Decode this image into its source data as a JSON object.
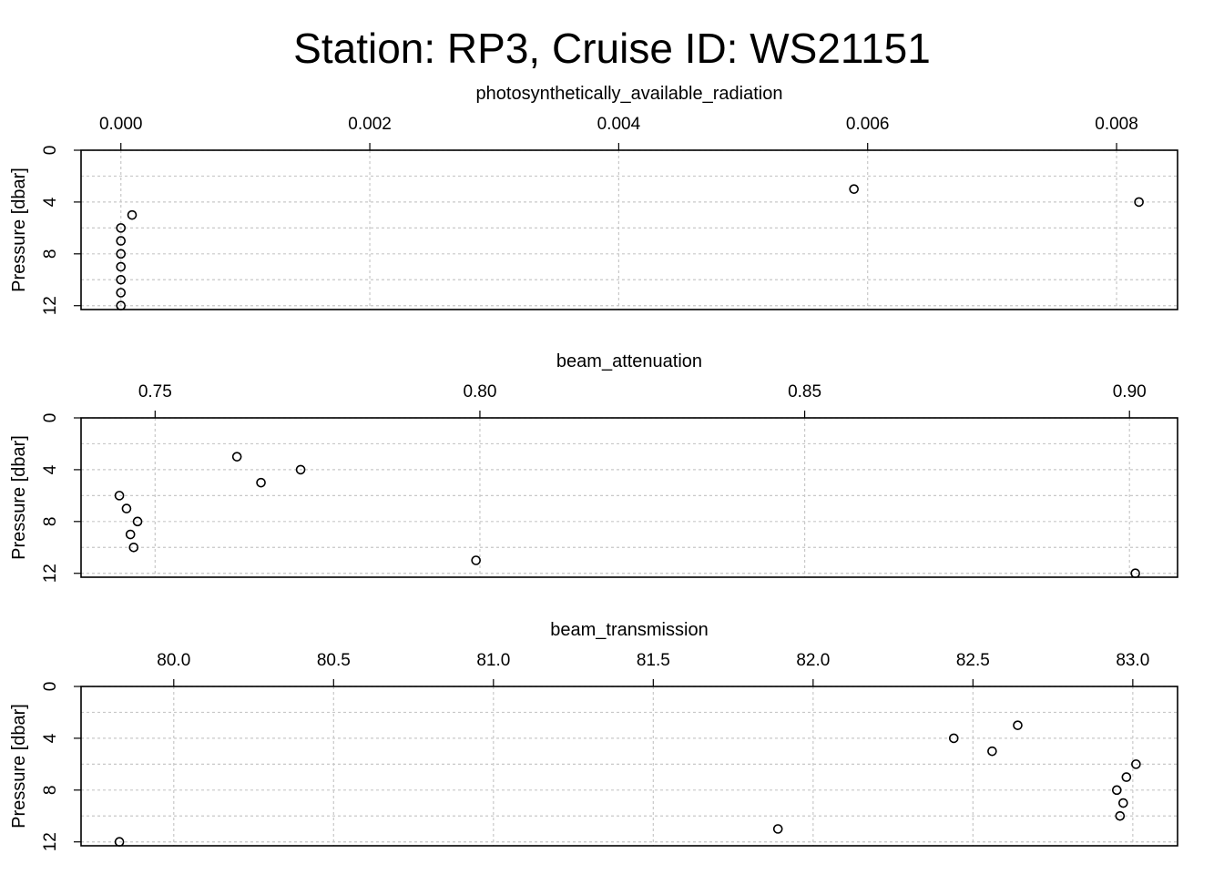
{
  "figure": {
    "title": "Station: RP3, Cruise ID: WS21151"
  },
  "chart_data": [
    {
      "type": "scatter",
      "title": "photosynthetically_available_radiation",
      "ylabel": "Pressure [dbar]",
      "x_axis_position": "top",
      "y_inverted": true,
      "grid": true,
      "xlim": [
        -0.00032,
        0.00849
      ],
      "ylim": [
        0,
        12.3
      ],
      "xticks": [
        {
          "value": 0.0,
          "label": "0.000"
        },
        {
          "value": 0.002,
          "label": "0.002"
        },
        {
          "value": 0.004,
          "label": "0.004"
        },
        {
          "value": 0.006,
          "label": "0.006"
        },
        {
          "value": 0.008,
          "label": "0.008"
        }
      ],
      "yticks": [
        {
          "value": 0,
          "label": "0"
        },
        {
          "value": 4,
          "label": "4"
        },
        {
          "value": 8,
          "label": "8"
        },
        {
          "value": 12,
          "label": "12"
        }
      ],
      "ygrid": [
        0,
        2,
        4,
        6,
        8,
        10,
        12
      ],
      "points": [
        {
          "x": 0.00589,
          "y": 3
        },
        {
          "x": 0.00818,
          "y": 4
        },
        {
          "x": 9e-05,
          "y": 5
        },
        {
          "x": 0.0,
          "y": 6
        },
        {
          "x": 0.0,
          "y": 7
        },
        {
          "x": 0.0,
          "y": 8
        },
        {
          "x": 0.0,
          "y": 9
        },
        {
          "x": 0.0,
          "y": 10
        },
        {
          "x": 0.0,
          "y": 11
        },
        {
          "x": 0.0,
          "y": 12
        }
      ]
    },
    {
      "type": "scatter",
      "title": "beam_attenuation",
      "ylabel": "Pressure [dbar]",
      "x_axis_position": "top",
      "y_inverted": true,
      "grid": true,
      "xlim": [
        0.7386,
        0.9074
      ],
      "ylim": [
        0,
        12.3
      ],
      "xticks": [
        {
          "value": 0.75,
          "label": "0.75"
        },
        {
          "value": 0.8,
          "label": "0.80"
        },
        {
          "value": 0.85,
          "label": "0.85"
        },
        {
          "value": 0.9,
          "label": "0.90"
        }
      ],
      "yticks": [
        {
          "value": 0,
          "label": "0"
        },
        {
          "value": 4,
          "label": "4"
        },
        {
          "value": 8,
          "label": "8"
        },
        {
          "value": 12,
          "label": "12"
        }
      ],
      "ygrid": [
        0,
        2,
        4,
        6,
        8,
        10,
        12
      ],
      "points": [
        {
          "x": 0.7626,
          "y": 3
        },
        {
          "x": 0.7724,
          "y": 4
        },
        {
          "x": 0.7663,
          "y": 5
        },
        {
          "x": 0.7445,
          "y": 6
        },
        {
          "x": 0.7456,
          "y": 7
        },
        {
          "x": 0.7473,
          "y": 8
        },
        {
          "x": 0.7462,
          "y": 9
        },
        {
          "x": 0.7467,
          "y": 10
        },
        {
          "x": 0.7994,
          "y": 11
        },
        {
          "x": 0.9009,
          "y": 12
        }
      ]
    },
    {
      "type": "scatter",
      "title": "beam_transmission",
      "ylabel": "Pressure [dbar]",
      "x_axis_position": "top",
      "y_inverted": true,
      "grid": true,
      "xlim": [
        79.71,
        83.14
      ],
      "ylim": [
        0,
        12.3
      ],
      "xticks": [
        {
          "value": 80.0,
          "label": "80.0"
        },
        {
          "value": 80.5,
          "label": "80.5"
        },
        {
          "value": 81.0,
          "label": "81.0"
        },
        {
          "value": 81.5,
          "label": "81.5"
        },
        {
          "value": 82.0,
          "label": "82.0"
        },
        {
          "value": 82.5,
          "label": "82.5"
        },
        {
          "value": 83.0,
          "label": "83.0"
        }
      ],
      "yticks": [
        {
          "value": 0,
          "label": "0"
        },
        {
          "value": 4,
          "label": "4"
        },
        {
          "value": 8,
          "label": "8"
        },
        {
          "value": 12,
          "label": "12"
        }
      ],
      "ygrid": [
        0,
        2,
        4,
        6,
        8,
        10,
        12
      ],
      "points": [
        {
          "x": 82.64,
          "y": 3
        },
        {
          "x": 82.44,
          "y": 4
        },
        {
          "x": 82.56,
          "y": 5
        },
        {
          "x": 83.01,
          "y": 6
        },
        {
          "x": 82.98,
          "y": 7
        },
        {
          "x": 82.95,
          "y": 8
        },
        {
          "x": 82.97,
          "y": 9
        },
        {
          "x": 82.96,
          "y": 10
        },
        {
          "x": 81.89,
          "y": 11
        },
        {
          "x": 79.83,
          "y": 12
        }
      ]
    }
  ]
}
